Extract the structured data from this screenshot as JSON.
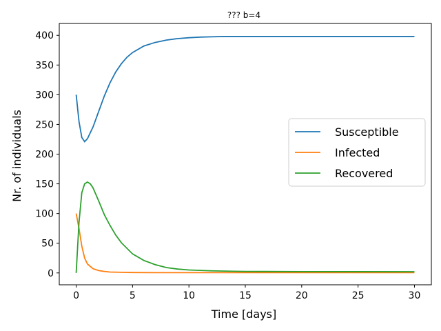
{
  "chart_data": {
    "type": "line",
    "title": "??? b=4",
    "xlabel": "Time [days]",
    "ylabel": "Nr. of individuals",
    "xlim": [
      -1.5,
      31.5
    ],
    "ylim": [
      -20,
      420
    ],
    "xticks": [
      0,
      5,
      10,
      15,
      20,
      25,
      30
    ],
    "yticks": [
      0,
      50,
      100,
      150,
      200,
      250,
      300,
      350,
      400
    ],
    "grid": false,
    "legend_position": "right",
    "series": [
      {
        "name": "Susceptible",
        "color": "#1f77b4",
        "x": [
          0,
          0.25,
          0.5,
          0.75,
          1,
          1.5,
          2,
          2.5,
          3,
          3.5,
          4,
          4.5,
          5,
          6,
          7,
          8,
          9,
          10,
          11,
          12,
          13,
          14,
          15,
          17,
          20,
          25,
          30
        ],
        "y": [
          300,
          255,
          228,
          221,
          226,
          246,
          272,
          298,
          320,
          338,
          352,
          363,
          371,
          382,
          388,
          392,
          394.5,
          396,
          397,
          397.5,
          398,
          398,
          398,
          398,
          398,
          398,
          398
        ]
      },
      {
        "name": "Infected",
        "color": "#ff7f0e",
        "x": [
          0,
          0.25,
          0.5,
          0.75,
          1,
          1.5,
          2,
          2.5,
          3,
          4,
          5,
          7,
          10,
          15,
          20,
          25,
          30
        ],
        "y": [
          100,
          75,
          45,
          25,
          15,
          7,
          4,
          2.5,
          1.5,
          1,
          0.7,
          0.5,
          0.5,
          0.5,
          0.5,
          0.5,
          0.5
        ]
      },
      {
        "name": "Recovered",
        "color": "#2ca02c",
        "x": [
          0,
          0.25,
          0.5,
          0.75,
          1,
          1.25,
          1.5,
          2,
          2.5,
          3,
          3.5,
          4,
          5,
          6,
          7,
          8,
          9,
          10,
          12,
          14,
          15,
          20,
          25,
          30
        ],
        "y": [
          0,
          85,
          135,
          150,
          153,
          150,
          143,
          121,
          98,
          80,
          64,
          51,
          32,
          21,
          14,
          9,
          6.5,
          5,
          3.5,
          2.8,
          2.5,
          2.2,
          2.1,
          2
        ]
      }
    ]
  }
}
